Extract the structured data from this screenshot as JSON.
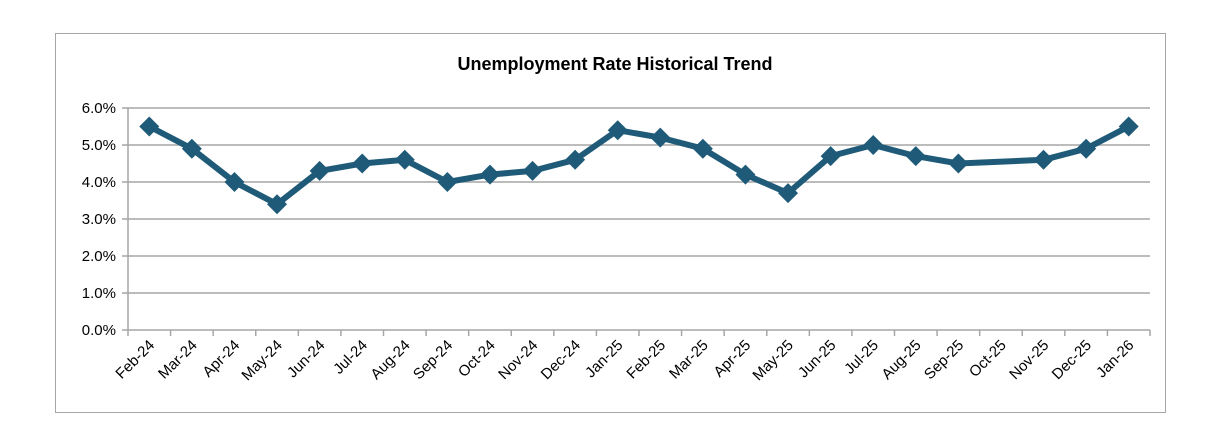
{
  "chart_data": {
    "type": "line",
    "title": "Unemployment Rate Historical Trend",
    "categories": [
      "Feb-24",
      "Mar-24",
      "Apr-24",
      "May-24",
      "Jun-24",
      "Jul-24",
      "Aug-24",
      "Sep-24",
      "Oct-24",
      "Nov-24",
      "Dec-24",
      "Jan-25",
      "Feb-25",
      "Mar-25",
      "Apr-25",
      "May-25",
      "Jun-25",
      "Jul-25",
      "Aug-25",
      "Sep-25",
      "Oct-25",
      "Nov-25",
      "Dec-25",
      "Jan-26"
    ],
    "series": [
      {
        "values": [
          5.5,
          4.9,
          4.0,
          3.4,
          4.3,
          4.5,
          4.6,
          4.0,
          4.2,
          4.3,
          4.6,
          5.4,
          5.2,
          4.9,
          4.2,
          3.7,
          4.7,
          5.0,
          4.7,
          4.5,
          null,
          4.6,
          4.9,
          5.5
        ],
        "color": "#1f5b78"
      }
    ],
    "y_ticks": [
      "0.0%",
      "1.0%",
      "2.0%",
      "3.0%",
      "4.0%",
      "5.0%",
      "6.0%"
    ],
    "ylim": [
      0,
      6
    ],
    "grid": true,
    "line_gaps": "connected",
    "gridline_color": "#a6a6a6",
    "axis_color": "#a6a6a6"
  }
}
